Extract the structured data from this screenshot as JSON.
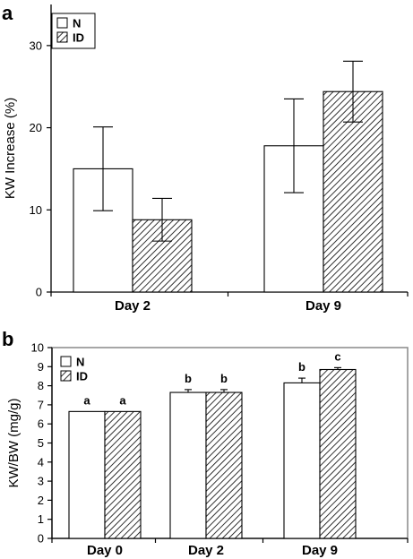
{
  "chart_data": [
    {
      "panel": "a",
      "type": "bar",
      "ylabel": "KW Increase (%)",
      "ylim": [
        0,
        35
      ],
      "yticks": [
        0,
        10,
        20,
        30
      ],
      "categories": [
        "Day 2",
        "Day 9"
      ],
      "series": [
        {
          "name": "N",
          "values": [
            15.0,
            17.8
          ],
          "errors": [
            5.1,
            5.7
          ],
          "fill": "open"
        },
        {
          "name": "ID",
          "values": [
            8.8,
            24.4
          ],
          "errors": [
            2.6,
            3.7
          ],
          "fill": "hatched"
        }
      ],
      "legend_position": "top-left"
    },
    {
      "panel": "b",
      "type": "bar",
      "ylabel": "KW/BW (mg/g)",
      "ylim": [
        0,
        10
      ],
      "yticks": [
        0,
        1,
        2,
        3,
        4,
        5,
        6,
        7,
        8,
        9,
        10
      ],
      "categories": [
        "Day 0",
        "Day 2",
        "Day 9"
      ],
      "series": [
        {
          "name": "N",
          "values": [
            6.65,
            7.65,
            8.15
          ],
          "errors": [
            0.0,
            0.15,
            0.25
          ],
          "labels": [
            "a",
            "b",
            "b"
          ],
          "fill": "open"
        },
        {
          "name": "ID",
          "values": [
            6.65,
            7.65,
            8.85
          ],
          "errors": [
            0.0,
            0.15,
            0.1
          ],
          "labels": [
            "a",
            "b",
            "c"
          ],
          "fill": "hatched"
        }
      ],
      "legend_position": "top-left"
    }
  ],
  "colors": {
    "axis": "#000000",
    "frame_b": "#888888",
    "bar_fill": "#ffffff"
  }
}
